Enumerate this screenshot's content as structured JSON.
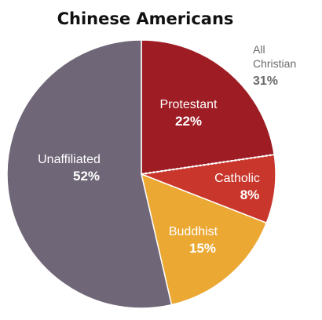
{
  "chart_data": {
    "type": "pie",
    "title": "Chinese Americans",
    "slices": [
      {
        "label": "Protestant",
        "value": 22,
        "value_label": "22%",
        "color": "#9e1c24"
      },
      {
        "label": "Catholic",
        "value": 8,
        "value_label": "8%",
        "color": "#c9362b"
      },
      {
        "label": "Buddhist",
        "value": 15,
        "value_label": "15%",
        "color": "#eba832"
      },
      {
        "label": "Unaffiliated",
        "value": 52,
        "value_label": "52%",
        "color": "#6f6677"
      }
    ],
    "callout": {
      "line1": "All",
      "line2": "Christian",
      "value_label": "31%",
      "color": "#6b6b6b"
    },
    "start_angle_deg": 0,
    "divider": "dotted line between Protestant and Catholic"
  }
}
